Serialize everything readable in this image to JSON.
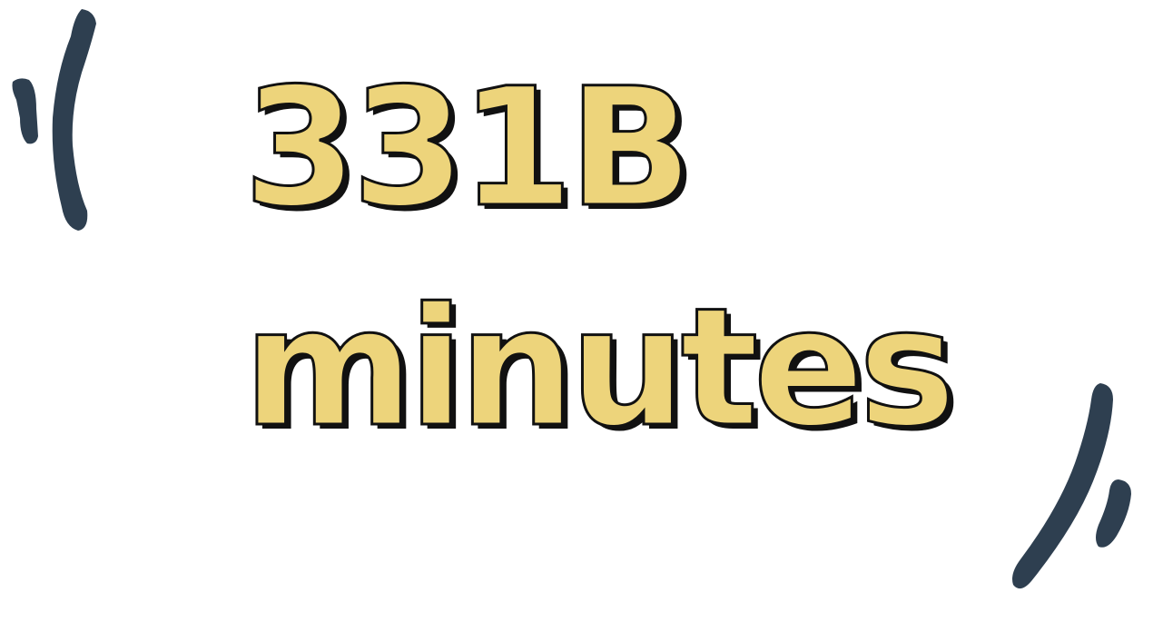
{
  "headline": {
    "line1": "331B",
    "line2": "minutes",
    "text_color": "#edd47b",
    "shadow_color": "#111111"
  },
  "decorations": {
    "brush_color": "#2e3f50",
    "icons": [
      "opening-brush-marks-icon",
      "closing-brush-marks-icon"
    ]
  }
}
